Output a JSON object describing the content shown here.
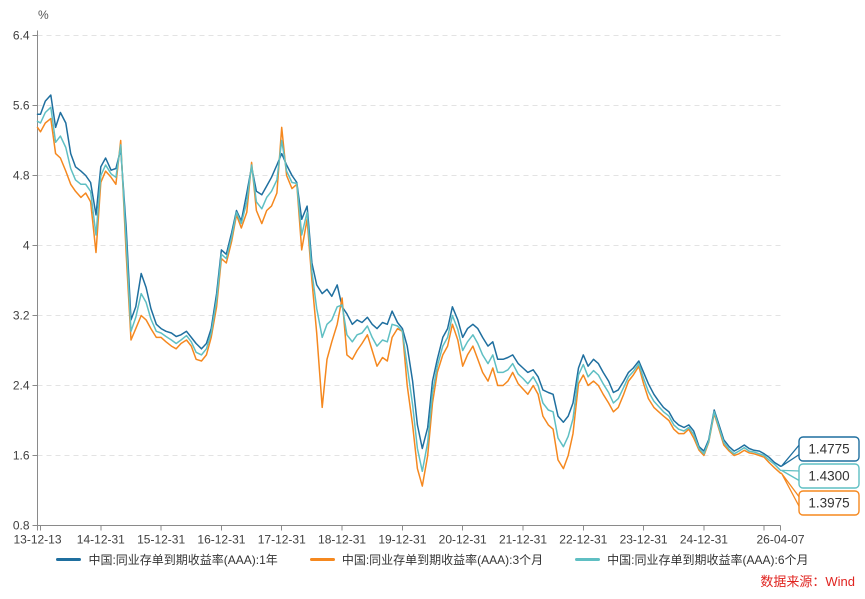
{
  "source_label": "数据来源：Wind",
  "colors": {
    "series_1y": "#1f6f9f",
    "series_3m": "#f5881f",
    "series_6m": "#5fbfc3",
    "grid": "#e3e3e3",
    "axis": "#8a8a8a",
    "text": "#404040",
    "source": "#e02420",
    "callout_text": "#333333"
  },
  "legend": {
    "items": [
      {
        "label": "中国:同业存单到期收益率(AAA):1年",
        "color": "#1f6f9f"
      },
      {
        "label": "中国:同业存单到期收益率(AAA):3个月",
        "color": "#f5881f"
      },
      {
        "label": "中国:同业存单到期收益率(AAA):6个月",
        "color": "#5fbfc3"
      }
    ]
  },
  "y_axis": {
    "unit": "%",
    "ticks": [
      {
        "v": 6.4,
        "label": "6.4"
      },
      {
        "v": 5.6,
        "label": "5.6"
      },
      {
        "v": 4.8,
        "label": "4.8"
      },
      {
        "v": 4.0,
        "label": "4"
      },
      {
        "v": 3.2,
        "label": "3.2"
      },
      {
        "v": 2.4,
        "label": "2.4"
      },
      {
        "v": 1.6,
        "label": "1.6"
      },
      {
        "v": 0.8,
        "label": "0.8"
      }
    ]
  },
  "x_axis": {
    "ticks": [
      {
        "t": 2013.95,
        "label": "13-12-13"
      },
      {
        "t": 2015.0,
        "label": "14-12-31"
      },
      {
        "t": 2016.0,
        "label": "15-12-31"
      },
      {
        "t": 2017.0,
        "label": "16-12-31"
      },
      {
        "t": 2018.0,
        "label": "17-12-31"
      },
      {
        "t": 2019.0,
        "label": "18-12-31"
      },
      {
        "t": 2020.0,
        "label": "19-12-31"
      },
      {
        "t": 2021.0,
        "label": "20-12-31"
      },
      {
        "t": 2022.0,
        "label": "21-12-31"
      },
      {
        "t": 2023.0,
        "label": "22-12-31"
      },
      {
        "t": 2024.0,
        "label": "23-12-31"
      },
      {
        "t": 2025.0,
        "label": "24-12-31"
      },
      {
        "t": 2026.27,
        "label": "26-04-07"
      }
    ],
    "minor_ticks": [
      2014.0,
      2026.0
    ]
  },
  "end_labels": [
    {
      "text": "1.4775",
      "series_index": 0
    },
    {
      "text": "1.4300",
      "series_index": 2
    },
    {
      "text": "1.3975",
      "series_index": 1
    }
  ],
  "chart_data": {
    "type": "line",
    "title": "",
    "xlabel": "",
    "ylabel": "%",
    "grid": true,
    "legend_position": "bottom",
    "xlim": [
      2013.95,
      2026.27
    ],
    "ylim": [
      0.8,
      6.4
    ],
    "x": [
      2013.95,
      2014.0,
      2014.08,
      2014.17,
      2014.25,
      2014.33,
      2014.42,
      2014.5,
      2014.58,
      2014.67,
      2014.75,
      2014.83,
      2014.92,
      2015.0,
      2015.08,
      2015.17,
      2015.25,
      2015.33,
      2015.42,
      2015.5,
      2015.58,
      2015.67,
      2015.75,
      2015.83,
      2015.92,
      2016.0,
      2016.08,
      2016.17,
      2016.25,
      2016.33,
      2016.42,
      2016.5,
      2016.58,
      2016.67,
      2016.75,
      2016.83,
      2016.92,
      2017.0,
      2017.08,
      2017.17,
      2017.25,
      2017.33,
      2017.42,
      2017.5,
      2017.58,
      2017.67,
      2017.75,
      2017.83,
      2017.92,
      2018.0,
      2018.08,
      2018.17,
      2018.25,
      2018.33,
      2018.42,
      2018.5,
      2018.58,
      2018.67,
      2018.75,
      2018.83,
      2018.92,
      2019.0,
      2019.08,
      2019.17,
      2019.25,
      2019.33,
      2019.42,
      2019.5,
      2019.58,
      2019.67,
      2019.75,
      2019.83,
      2019.92,
      2020.0,
      2020.08,
      2020.17,
      2020.25,
      2020.33,
      2020.42,
      2020.5,
      2020.58,
      2020.67,
      2020.75,
      2020.83,
      2020.92,
      2021.0,
      2021.08,
      2021.17,
      2021.25,
      2021.33,
      2021.42,
      2021.5,
      2021.58,
      2021.67,
      2021.75,
      2021.83,
      2021.92,
      2022.0,
      2022.08,
      2022.17,
      2022.25,
      2022.33,
      2022.42,
      2022.5,
      2022.58,
      2022.67,
      2022.75,
      2022.83,
      2022.92,
      2023.0,
      2023.08,
      2023.17,
      2023.25,
      2023.33,
      2023.42,
      2023.5,
      2023.58,
      2023.67,
      2023.75,
      2023.83,
      2023.92,
      2024.0,
      2024.08,
      2024.17,
      2024.25,
      2024.33,
      2024.42,
      2024.5,
      2024.58,
      2024.67,
      2024.75,
      2024.83,
      2024.92,
      2025.0,
      2025.08,
      2025.17,
      2025.25,
      2025.33,
      2025.42,
      2025.5,
      2025.58,
      2025.67,
      2025.75,
      2025.83,
      2025.92,
      2026.0,
      2026.08,
      2026.17,
      2026.27
    ],
    "series": [
      {
        "id": "1y",
        "name": "中国:同业存单到期收益率(AAA):1年",
        "color": "#1f6f9f",
        "end_value": 1.4775,
        "values": [
          5.5,
          5.5,
          5.65,
          5.72,
          5.35,
          5.52,
          5.4,
          5.05,
          4.9,
          4.85,
          4.8,
          4.72,
          4.35,
          4.9,
          5.0,
          4.86,
          4.88,
          5.1,
          4.2,
          3.15,
          3.3,
          3.68,
          3.52,
          3.28,
          3.1,
          3.05,
          3.02,
          3.0,
          2.96,
          2.98,
          3.02,
          2.95,
          2.88,
          2.82,
          2.88,
          3.05,
          3.45,
          3.95,
          3.9,
          4.15,
          4.4,
          4.28,
          4.6,
          4.9,
          4.62,
          4.58,
          4.68,
          4.78,
          4.92,
          5.05,
          4.92,
          4.8,
          4.72,
          4.3,
          4.45,
          3.8,
          3.55,
          3.45,
          3.5,
          3.42,
          3.55,
          3.3,
          3.22,
          3.1,
          3.15,
          3.12,
          3.18,
          3.1,
          3.05,
          3.12,
          3.1,
          3.25,
          3.12,
          3.05,
          2.85,
          2.45,
          1.95,
          1.68,
          1.92,
          2.45,
          2.7,
          2.95,
          3.05,
          3.3,
          3.15,
          2.95,
          3.05,
          3.1,
          3.05,
          2.95,
          2.85,
          2.9,
          2.7,
          2.7,
          2.72,
          2.75,
          2.65,
          2.6,
          2.55,
          2.58,
          2.5,
          2.35,
          2.32,
          2.3,
          2.05,
          1.98,
          2.05,
          2.2,
          2.6,
          2.75,
          2.62,
          2.7,
          2.65,
          2.55,
          2.45,
          2.32,
          2.35,
          2.45,
          2.55,
          2.6,
          2.68,
          2.55,
          2.42,
          2.3,
          2.22,
          2.15,
          2.1,
          2.0,
          1.95,
          1.92,
          1.95,
          1.88,
          1.7,
          1.65,
          1.78,
          2.12,
          1.95,
          1.78,
          1.7,
          1.65,
          1.68,
          1.72,
          1.68,
          1.66,
          1.65,
          1.62,
          1.58,
          1.52,
          1.4775
        ]
      },
      {
        "id": "3m",
        "name": "中国:同业存单到期收益率(AAA):3个月",
        "color": "#f5881f",
        "end_value": 1.3975,
        "values": [
          5.35,
          5.3,
          5.4,
          5.45,
          5.05,
          5.0,
          4.85,
          4.7,
          4.62,
          4.55,
          4.6,
          4.5,
          3.92,
          4.72,
          4.85,
          4.78,
          4.7,
          5.2,
          3.9,
          2.92,
          3.05,
          3.2,
          3.15,
          3.05,
          2.95,
          2.95,
          2.9,
          2.85,
          2.82,
          2.88,
          2.92,
          2.85,
          2.7,
          2.68,
          2.75,
          2.95,
          3.3,
          3.85,
          3.8,
          4.05,
          4.35,
          4.2,
          4.38,
          4.95,
          4.4,
          4.25,
          4.4,
          4.45,
          4.6,
          5.35,
          4.8,
          4.65,
          4.7,
          3.95,
          4.3,
          3.6,
          3.0,
          2.15,
          2.7,
          2.9,
          3.1,
          3.4,
          2.75,
          2.7,
          2.8,
          2.88,
          2.98,
          2.8,
          2.62,
          2.72,
          2.68,
          2.95,
          3.05,
          3.02,
          2.4,
          1.95,
          1.45,
          1.25,
          1.6,
          2.2,
          2.55,
          2.75,
          2.85,
          3.1,
          2.92,
          2.62,
          2.75,
          2.85,
          2.7,
          2.55,
          2.45,
          2.6,
          2.4,
          2.4,
          2.45,
          2.55,
          2.42,
          2.36,
          2.3,
          2.4,
          2.3,
          2.05,
          1.95,
          1.9,
          1.55,
          1.45,
          1.6,
          1.85,
          2.42,
          2.52,
          2.4,
          2.45,
          2.4,
          2.3,
          2.2,
          2.1,
          2.15,
          2.3,
          2.45,
          2.52,
          2.62,
          2.42,
          2.25,
          2.15,
          2.1,
          2.05,
          2.0,
          1.9,
          1.85,
          1.85,
          1.9,
          1.8,
          1.66,
          1.6,
          1.75,
          2.08,
          1.9,
          1.72,
          1.65,
          1.6,
          1.62,
          1.66,
          1.63,
          1.62,
          1.6,
          1.58,
          1.52,
          1.46,
          1.3975
        ]
      },
      {
        "id": "6m",
        "name": "中国:同业存单到期收益率(AAA):6个月",
        "color": "#5fbfc3",
        "end_value": 1.43,
        "values": [
          5.42,
          5.4,
          5.52,
          5.58,
          5.18,
          5.25,
          5.12,
          4.88,
          4.75,
          4.7,
          4.7,
          4.62,
          4.12,
          4.8,
          4.92,
          4.82,
          4.78,
          5.15,
          4.05,
          3.02,
          3.18,
          3.45,
          3.35,
          3.16,
          3.02,
          3.0,
          2.96,
          2.92,
          2.88,
          2.92,
          2.97,
          2.9,
          2.78,
          2.75,
          2.82,
          3.0,
          3.38,
          3.9,
          3.85,
          4.1,
          4.38,
          4.25,
          4.5,
          4.92,
          4.5,
          4.42,
          4.55,
          4.62,
          4.75,
          5.2,
          4.85,
          4.72,
          4.71,
          4.12,
          4.38,
          3.7,
          3.28,
          2.95,
          3.1,
          3.15,
          3.3,
          3.32,
          2.98,
          2.9,
          2.98,
          3.0,
          3.08,
          2.95,
          2.85,
          2.92,
          2.9,
          3.1,
          3.08,
          3.02,
          2.62,
          2.18,
          1.68,
          1.42,
          1.75,
          2.32,
          2.62,
          2.85,
          2.95,
          3.2,
          3.04,
          2.8,
          2.9,
          2.98,
          2.88,
          2.75,
          2.65,
          2.75,
          2.55,
          2.55,
          2.58,
          2.65,
          2.53,
          2.48,
          2.42,
          2.5,
          2.4,
          2.2,
          2.12,
          2.1,
          1.8,
          1.7,
          1.82,
          2.02,
          2.52,
          2.64,
          2.5,
          2.57,
          2.52,
          2.42,
          2.32,
          2.2,
          2.25,
          2.38,
          2.5,
          2.56,
          2.65,
          2.48,
          2.33,
          2.22,
          2.16,
          2.1,
          2.05,
          1.95,
          1.9,
          1.88,
          1.92,
          1.84,
          1.68,
          1.62,
          1.76,
          2.1,
          1.92,
          1.75,
          1.67,
          1.62,
          1.65,
          1.69,
          1.65,
          1.64,
          1.62,
          1.6,
          1.55,
          1.5,
          1.43
        ]
      }
    ]
  }
}
